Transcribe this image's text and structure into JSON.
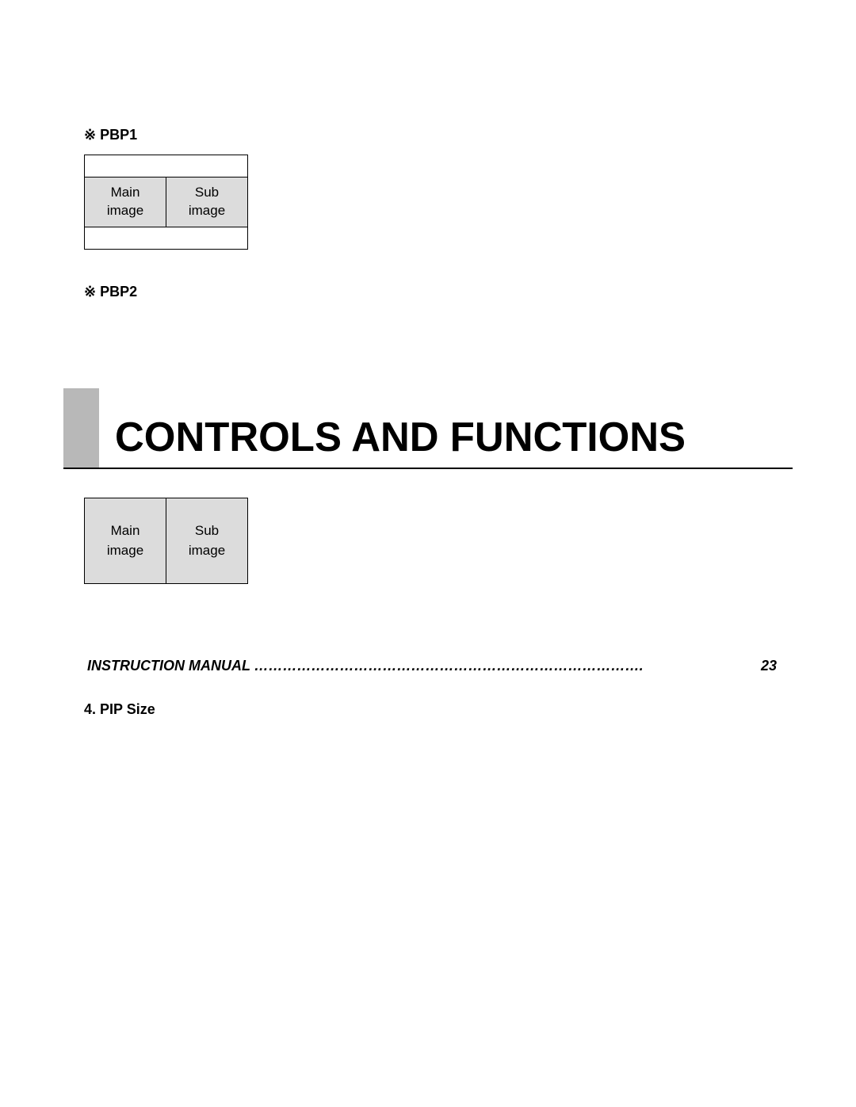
{
  "pbp1": {
    "label": "※ PBP1",
    "cells": {
      "main_line1": "Main",
      "main_line2": "image",
      "sub_line1": "Sub",
      "sub_line2": "image"
    }
  },
  "pbp2": {
    "label": "※ PBP2",
    "cells": {
      "main_line1": "Main",
      "main_line2": "image",
      "sub_line1": "Sub",
      "sub_line2": "image"
    }
  },
  "section_header": {
    "title": "CONTROLS AND FUNCTIONS"
  },
  "manual_line": {
    "label": "INSTRUCTION MANUAL",
    "dots": "   ……………………………………………………………………….",
    "page": "23"
  },
  "pip_size": {
    "heading": "4. PIP Size"
  },
  "colors": {
    "cell_bg": "#dcdcdc",
    "header_block": "#b8b8b8",
    "background": "#ffffff",
    "text": "#000000"
  }
}
